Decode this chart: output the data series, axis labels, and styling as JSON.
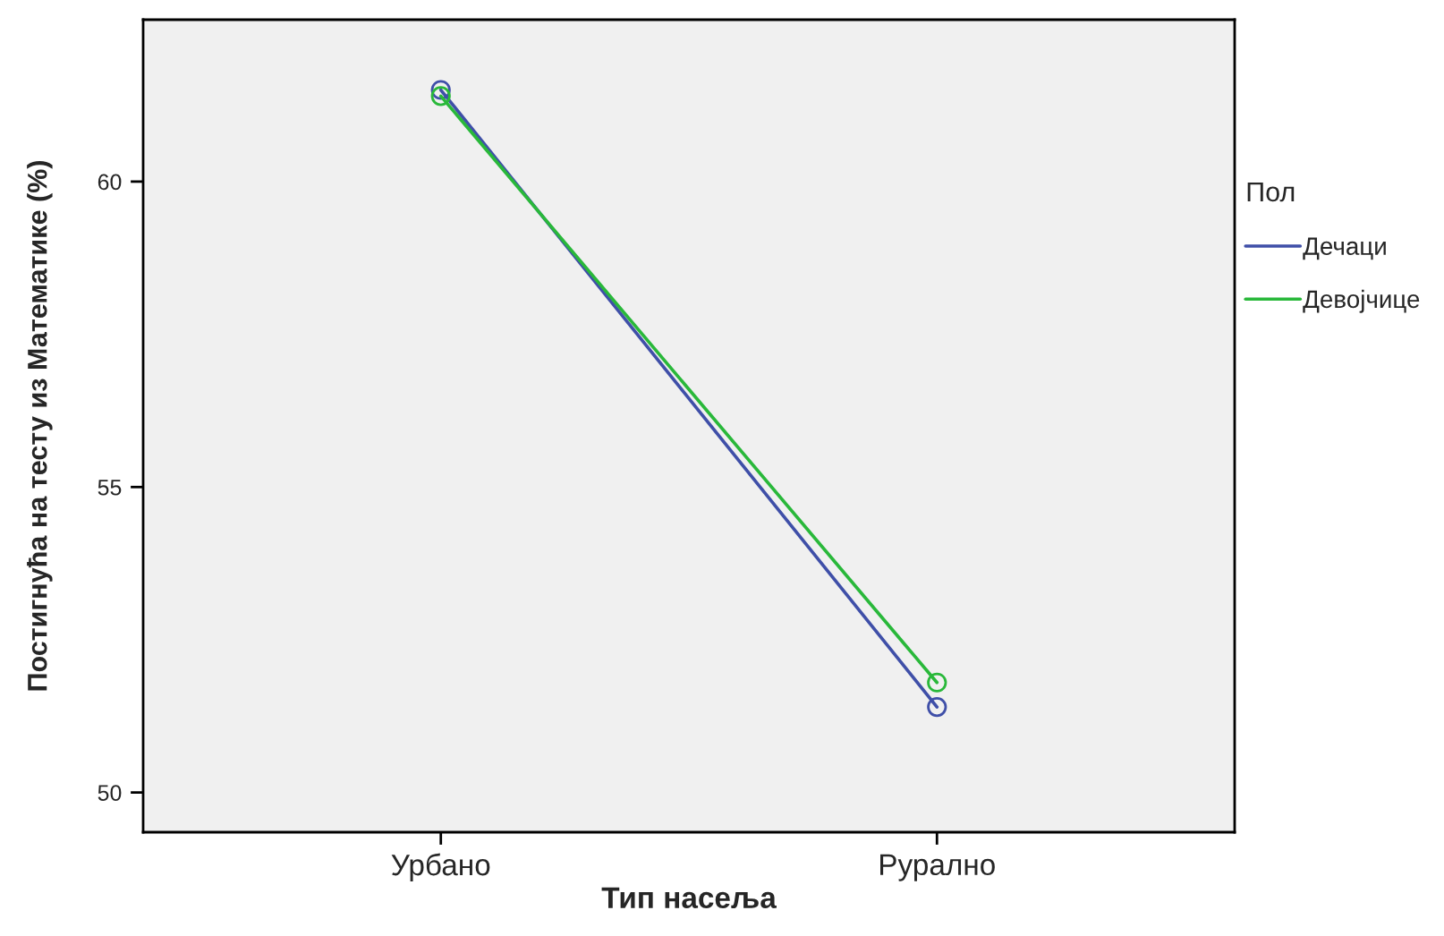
{
  "chart_data": {
    "type": "line",
    "xlabel": "Тип насеља",
    "ylabel": "Постигнућа на тесту из Математике (%)",
    "legend_title": "Пол",
    "categories": [
      "Урбано",
      "Рурално"
    ],
    "series": [
      {
        "name": "Дечаци",
        "color": "#3f4fa8",
        "values": [
          61.5,
          51.4
        ]
      },
      {
        "name": "Девојчице",
        "color": "#29b83a",
        "values": [
          61.4,
          51.8
        ]
      }
    ],
    "ylim": [
      49.35,
      62.65
    ],
    "yticks": [
      50,
      55,
      60
    ],
    "grid": false,
    "legend": "right",
    "marker": "circle",
    "line_style": "solid"
  }
}
